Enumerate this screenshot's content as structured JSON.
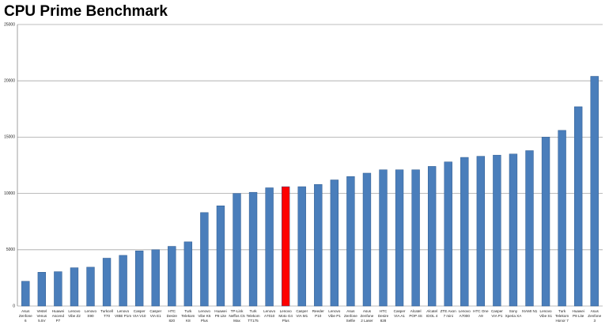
{
  "chart_data": {
    "type": "bar",
    "title": "CPU Prime Benchmark",
    "categories": [
      "Asus\nZenfone\n6",
      "Vestel\nVenus\n5.5V",
      "Huawei\nAscend\nP7",
      "Lenovo\nVibe Z2",
      "Lenovo\nS90",
      "Turkcell\nT70",
      "Lenovo\nVIBE P1m",
      "Casper\nVIA V10",
      "Casper\nVIA E1",
      "HTC\nDesire\n820",
      "Turk\nTelekom\nK8",
      "Lenovo\nVibe K5\nPlus",
      "Huawei\nP8 Lite",
      "TP-Link\nNeffos C5\nMax",
      "Turk\nTelekom\nTT175",
      "Lenovo\nA7010",
      "Lenovo\nMoto G4\nPlus",
      "Casper\nVIA M1",
      "Reeder\nP10",
      "Lenovo\nVibe P1",
      "Asus\nZenfone\nSelfie",
      "Asus\nZenfone\n2 Laser",
      "HTC\nDesire\n828",
      "Casper\nVIA A1",
      "Alcatel\nPOP 4S",
      "Alcatel\nIDOL 4",
      "ZTE Axon\n7 mini",
      "Lenovo\nA7000",
      "HTC One\nA9",
      "Casper\nVIA P1",
      "Sony\nXperia XA",
      "XIAMI N1",
      "Lenovo\nVibe S1",
      "Turk\nTelekom\nHonor 7",
      "Huawei\nP8 Lite",
      "Asus\nZenfone\n3"
    ],
    "values": [
      2200,
      3000,
      3050,
      3400,
      3450,
      4250,
      4500,
      4900,
      5000,
      5300,
      5700,
      8300,
      8900,
      10000,
      10100,
      10500,
      10600,
      10600,
      10800,
      11200,
      11500,
      11800,
      12100,
      12100,
      12100,
      12400,
      12800,
      13200,
      13300,
      13400,
      13500,
      13800,
      15000,
      15600,
      17700,
      20400
    ],
    "colors": [
      "#4a7ebb",
      "#4a7ebb",
      "#4a7ebb",
      "#4a7ebb",
      "#4a7ebb",
      "#4a7ebb",
      "#4a7ebb",
      "#4a7ebb",
      "#4a7ebb",
      "#4a7ebb",
      "#4a7ebb",
      "#4a7ebb",
      "#4a7ebb",
      "#4a7ebb",
      "#4a7ebb",
      "#4a7ebb",
      "#ff0000",
      "#4a7ebb",
      "#4a7ebb",
      "#4a7ebb",
      "#4a7ebb",
      "#4a7ebb",
      "#4a7ebb",
      "#4a7ebb",
      "#4a7ebb",
      "#4a7ebb",
      "#4a7ebb",
      "#4a7ebb",
      "#4a7ebb",
      "#4a7ebb",
      "#4a7ebb",
      "#4a7ebb",
      "#4a7ebb",
      "#4a7ebb",
      "#4a7ebb",
      "#4a7ebb"
    ],
    "ylim": [
      0,
      25000
    ],
    "yticks": [
      0,
      5000,
      10000,
      15000,
      20000,
      25000
    ],
    "grid": true
  }
}
